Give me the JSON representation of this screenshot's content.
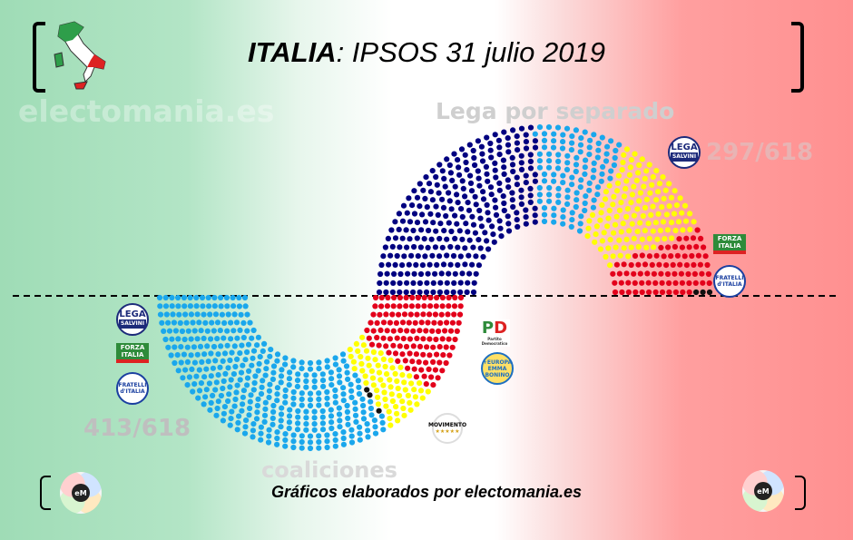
{
  "title": {
    "bold": "ITALIA",
    "rest": ": IPSOS 31 julio 2019"
  },
  "watermark": "electomania.es",
  "label_top": "Lega por separado",
  "label_bottom": "coaliciones",
  "seats_right": "297/618",
  "seats_left": "413/618",
  "footer": "Gráficos elaborados por electomania.es",
  "logos": {
    "lega_text": "LEGA",
    "lega_sub": "SALVINI",
    "forza_1": "FORZA",
    "forza_2": "ITALIA",
    "fdi_1": "FRATELLI",
    "fdi_2": "d'ITALIA",
    "pd": "PD",
    "pd_sub": "Partito Democratico",
    "europa_1": "+EUROPA",
    "europa_2": "EMMA BONINO",
    "m5s_1": "MOVIMENTO",
    "m5s_stars": "★★★★★",
    "em": "eM"
  },
  "colors": {
    "lega": "#000080",
    "center_right": "#1aa7ec",
    "m5s": "#ffff00",
    "left": "#e3001b",
    "other": "#111111"
  },
  "chart_data": [
    {
      "type": "parliament",
      "name": "Lega por separado",
      "total": 618,
      "seats_label": "297/618",
      "parties": [
        {
          "party": "Lega",
          "seats": 297,
          "color": "#000080"
        },
        {
          "party": "Forza Italia + Fratelli d'Italia",
          "seats": 113,
          "color": "#1aa7ec"
        },
        {
          "party": "Movimento 5 Stelle",
          "seats": 126,
          "color": "#ffff00"
        },
        {
          "party": "PD + +Europa",
          "seats": 79,
          "color": "#e3001b"
        },
        {
          "party": "Otros",
          "seats": 3,
          "color": "#111111"
        }
      ]
    },
    {
      "type": "parliament",
      "name": "coaliciones",
      "total": 618,
      "seats_label": "413/618",
      "parties": [
        {
          "party": "Lega + Forza Italia + Fratelli d'Italia",
          "seats": 413,
          "color": "#1aa7ec"
        },
        {
          "party": "Otros",
          "seats": 3,
          "color": "#111111"
        },
        {
          "party": "Movimento 5 Stelle",
          "seats": 70,
          "color": "#ffff00"
        },
        {
          "party": "PD + +Europa",
          "seats": 132,
          "color": "#e3001b"
        }
      ]
    }
  ]
}
